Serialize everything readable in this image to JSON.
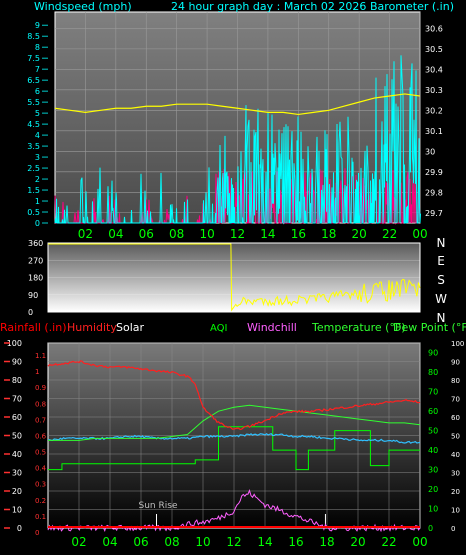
{
  "colors": {
    "windspeed": "#00ffff",
    "gust": "#ff0080",
    "barometer": "#ffff00",
    "direction": "#ffff00",
    "rainfall": "#ff0000",
    "humidity": "#ff2020",
    "solar": "#ffffff",
    "aqi": "#00ff00",
    "windchill": "#ff60ff",
    "temperature": "#30ff30",
    "dewpoint": "#30c0ff",
    "x_tick": "#00ff00",
    "left_axis_top": "#00ffff",
    "right_axis_top": "#ffffff",
    "left_axis_bottom": "#ff3030",
    "right_axis_bottom": "#00ff00"
  },
  "chart_data": [
    {
      "type": "line",
      "id": "wind_baro",
      "labels": {
        "left": "Windspeed (mph)",
        "center": "24 hour graph day : March 02 2026",
        "right": "Barometer (.in)"
      },
      "x_ticks": [
        "02",
        "04",
        "06",
        "08",
        "10",
        "12",
        "14",
        "16",
        "18",
        "20",
        "22",
        "00"
      ],
      "y_left_ticks": [
        "0",
        "0.5",
        "1",
        "1.5",
        "2",
        "2.5",
        "3",
        "3.5",
        "4",
        "4.5",
        "5",
        "5.5",
        "6",
        "6.5",
        "7",
        "7.5",
        "8",
        "8.5",
        "9"
      ],
      "y_right_ticks": [
        "29.7",
        "29.8",
        "29.9",
        "30",
        "30.1",
        "30.2",
        "30.3",
        "30.4",
        "30.5",
        "30.6"
      ],
      "ylim_left": [
        0,
        9.6
      ],
      "ylim_right": [
        29.65,
        30.68
      ],
      "xlim": [
        0,
        24
      ],
      "grid": true,
      "barometer": {
        "x": [
          0,
          1,
          2,
          3,
          4,
          5,
          6,
          7,
          8,
          9,
          10,
          11,
          12,
          13,
          14,
          15,
          16,
          17,
          18,
          19,
          20,
          21,
          22,
          23,
          24
        ],
        "values": [
          30.21,
          30.2,
          30.19,
          30.2,
          30.21,
          30.21,
          30.22,
          30.22,
          30.23,
          30.23,
          30.23,
          30.22,
          30.21,
          30.2,
          30.19,
          30.19,
          30.18,
          30.19,
          30.2,
          30.22,
          30.24,
          30.26,
          30.27,
          30.28,
          30.27
        ]
      },
      "windspeed_segments": [
        {
          "from": 0,
          "to": 10.5,
          "level": 1.2,
          "range": 2.0,
          "density": 0.12
        },
        {
          "from": 10.5,
          "to": 12.5,
          "level": 2.2,
          "range": 3.0,
          "density": 0.5
        },
        {
          "from": 12.5,
          "to": 16.5,
          "level": 3.0,
          "range": 3.5,
          "density": 0.55
        },
        {
          "from": 16.5,
          "to": 21,
          "level": 2.4,
          "range": 3.5,
          "density": 0.5
        },
        {
          "from": 21,
          "to": 24,
          "level": 3.5,
          "range": 6.0,
          "density": 0.6
        }
      ],
      "gust_segments": [
        {
          "from": 0,
          "to": 10.5,
          "level": 0.5,
          "range": 1.2,
          "density": 0.12
        },
        {
          "from": 10.5,
          "to": 24,
          "level": 1.5,
          "range": 1.5,
          "density": 0.5
        }
      ]
    },
    {
      "type": "line",
      "id": "wind_direction",
      "y_left_ticks": [
        "0",
        "90",
        "180",
        "270",
        "360"
      ],
      "y_right_ticks": [
        "N",
        "W",
        "S",
        "E",
        "N"
      ],
      "ylim": [
        0,
        360
      ],
      "xlim": [
        0,
        24
      ],
      "series": [
        {
          "x": [
            0,
            11.8,
            11.85,
            12.2,
            13,
            14,
            15,
            16,
            17,
            18,
            19,
            20,
            21,
            22,
            23,
            24
          ],
          "values": [
            355,
            355,
            10,
            50,
            55,
            60,
            58,
            62,
            65,
            75,
            88,
            95,
            105,
            112,
            118,
            125
          ]
        }
      ]
    },
    {
      "type": "line",
      "id": "temp_hum",
      "labels": {
        "rainfall": "Rainfall (.in)",
        "humidity": "Humidity",
        "solar": "Solar",
        "aqi": "AQI",
        "windchill": "Windchill",
        "temperature": "Temperature (°F)",
        "dewpoint": "Dew Point (°F)",
        "sunrise": "Sun Rise"
      },
      "x_ticks": [
        "02",
        "04",
        "06",
        "08",
        "10",
        "12",
        "14",
        "16",
        "18",
        "20",
        "22",
        "00"
      ],
      "y_left_ticks": [
        "0",
        "10",
        "20",
        "30",
        "40",
        "50",
        "60",
        "70",
        "80",
        "90",
        "100"
      ],
      "y_left_rain_ticks": [
        "0",
        "0.1",
        "0.2",
        "0.3",
        "0.4",
        "0.5",
        "0.6",
        "0.7",
        "0.8",
        "0.9",
        "1",
        "1.1"
      ],
      "y_right_ticks": [
        "0",
        "10",
        "20",
        "30",
        "40",
        "50",
        "60",
        "70",
        "80",
        "90"
      ],
      "y_right_inner_ticks": [
        "0",
        "10",
        "20",
        "30",
        "40",
        "50",
        "60",
        "70",
        "80",
        "90",
        "100"
      ],
      "ylim_left": [
        0,
        100
      ],
      "ylim_right": [
        0,
        95
      ],
      "xlim": [
        0,
        24
      ],
      "grid": true,
      "sunrise_hour": 7.0,
      "sunset_hour": 17.9,
      "humidity": {
        "x": [
          0,
          1,
          2,
          3,
          4,
          5,
          6,
          7,
          8,
          9,
          9.5,
          10,
          11,
          12,
          13,
          14,
          15,
          16,
          17,
          18,
          19,
          20,
          21,
          22,
          23,
          24
        ],
        "values": [
          88,
          89,
          90,
          88,
          87,
          87,
          86,
          85,
          84,
          82,
          78,
          65,
          57,
          53,
          55,
          58,
          62,
          63,
          63,
          64,
          65,
          66,
          67,
          68,
          69,
          68
        ]
      },
      "temperature": {
        "x": [
          0,
          1,
          2,
          3,
          4,
          5,
          6,
          7,
          8,
          9,
          10,
          11,
          12,
          13,
          14,
          15,
          16,
          17,
          18,
          19,
          20,
          21,
          22,
          23,
          24
        ],
        "values": [
          45,
          45,
          45,
          46,
          46,
          46,
          46,
          46,
          47,
          48,
          55,
          60,
          62,
          63,
          62,
          61,
          60,
          59,
          58,
          57,
          56,
          55,
          54,
          54,
          53
        ]
      },
      "dewpoint": {
        "x": [
          0,
          1,
          2,
          3,
          4,
          5,
          6,
          7,
          8,
          9,
          10,
          11,
          12,
          13,
          14,
          15,
          16,
          17,
          18,
          19,
          20,
          21,
          22,
          23,
          24
        ],
        "values": [
          45,
          46,
          46,
          46,
          46,
          47,
          47,
          46,
          46,
          46,
          47,
          47,
          47,
          48,
          48,
          48,
          47,
          47,
          46,
          46,
          45,
          45,
          45,
          44,
          44
        ]
      },
      "aqi": {
        "x": [
          0,
          0.9,
          0.9,
          9.5,
          9.5,
          11,
          11,
          14.5,
          14.5,
          16,
          16,
          16.8,
          16.8,
          18.5,
          18.5,
          20.8,
          20.8,
          22,
          22,
          24
        ],
        "values": [
          30,
          30,
          33,
          33,
          35,
          35,
          52,
          52,
          40,
          40,
          30,
          30,
          40,
          40,
          50,
          50,
          32,
          32,
          40,
          40
        ]
      },
      "windchill": {
        "x": [
          0,
          8,
          9,
          10,
          11,
          12,
          12.5,
          13,
          13.5,
          14,
          15,
          16,
          17,
          18,
          24
        ],
        "values": [
          0,
          0,
          2,
          3,
          5,
          9,
          16,
          18,
          15,
          12,
          9,
          6,
          3,
          0,
          0
        ]
      },
      "solar": {
        "x": [
          0,
          24
        ],
        "values": [
          0,
          0
        ]
      }
    }
  ]
}
